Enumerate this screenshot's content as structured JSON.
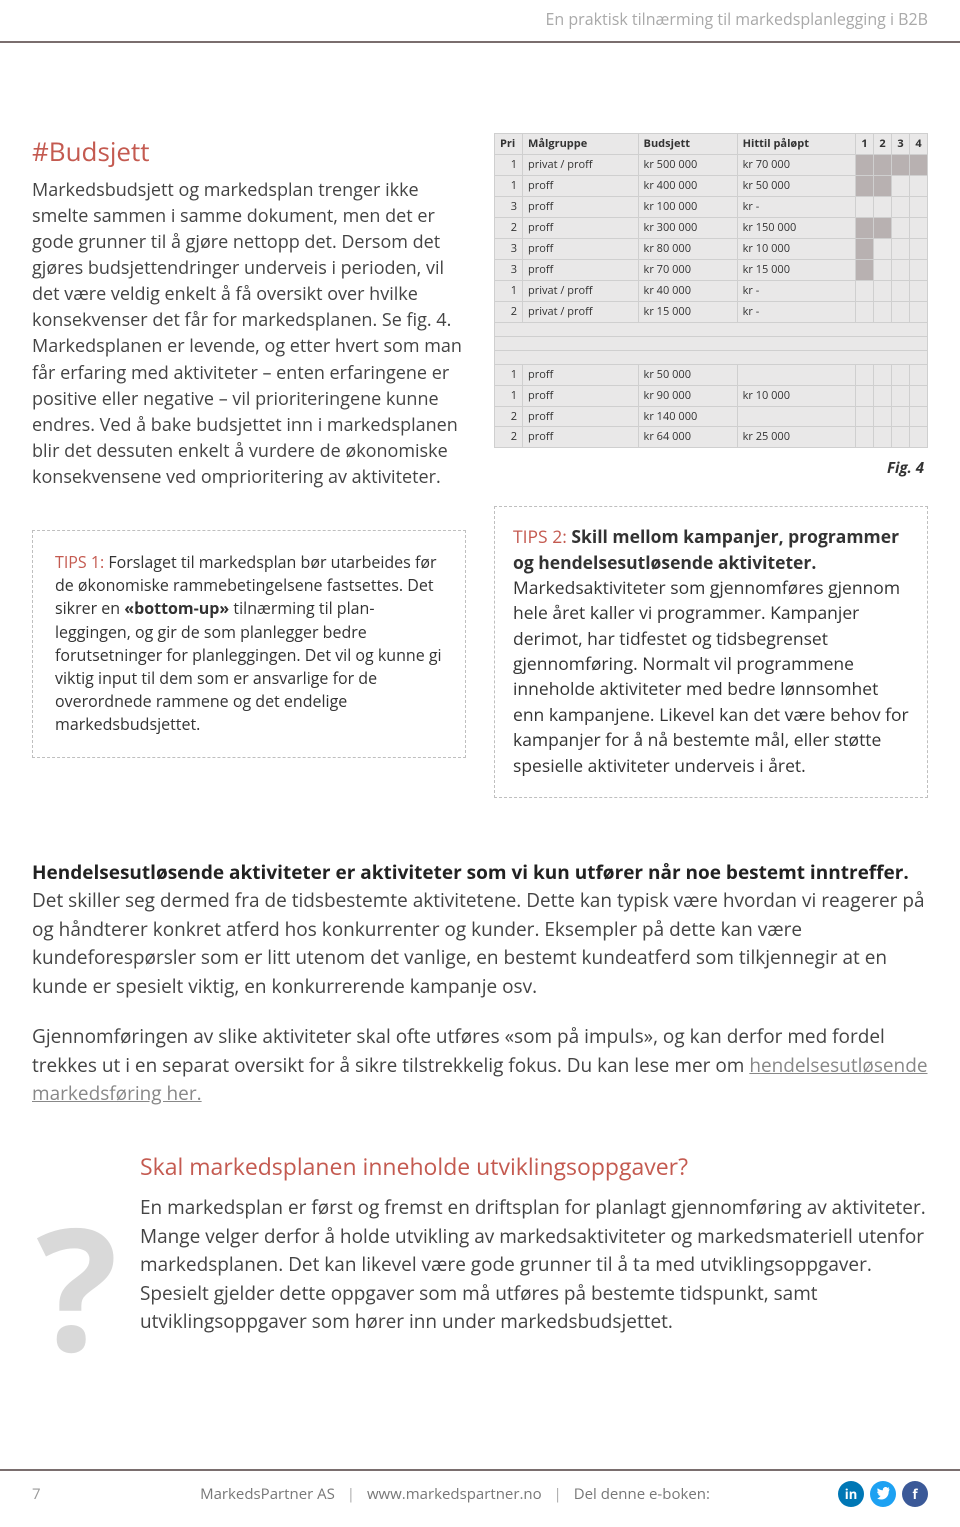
{
  "header": {
    "tagline": "En praktisk tilnærming til markedsplanlegging i B2B"
  },
  "section": {
    "heading": "#Budsjett",
    "para": "Markedsbudsjett og markedsplan trenger ikke smelte sammen i samme dokument, men det er gode grunner til å gjøre nettopp det. Dersom det gjøres budsjettendringer underveis i perioden, vil det være veldig enkelt å få oversikt over hvilke konsekvenser det får for markedsplanen. Se fig. 4. Markedsplanen er levende, og etter hvert som man får erfaring med aktiviteter – enten erfaringene er positive eller negative – vil prioriteringene kunne endres. Ved å bake budsjettet inn i markedsplanen blir det dessuten enkelt å vurdere de økonomiske konsekvensene ved omprioritering av aktiviteter."
  },
  "tip1": {
    "label": "TIPS 1:",
    "text_before": " Forslaget til markedsplan bør utarbeides før de økonomiske rammebetingelsene fastsettes. Det sikrer en ",
    "bold": "«bottom-up»",
    "text_after": " tilnærming til plan­leggingen, og gir de som planlegger bedre forutsetninger for planleggingen. Det vil og kunne gi viktig input til dem som er ansvarlige for de overordnede rammene og det endelige markedsbudsjettet."
  },
  "table": {
    "columns": [
      "Pri",
      "Målgruppe",
      "Budsjett",
      "Hittil påløpt",
      "1",
      "2",
      "3",
      "4"
    ],
    "rows1": [
      {
        "pri": "1",
        "mg": "privat / proff",
        "bud": "kr 500 000",
        "hit": "kr 70 000",
        "shade": [
          1,
          2,
          3,
          4
        ]
      },
      {
        "pri": "1",
        "mg": "proff",
        "bud": "kr 400 000",
        "hit": "kr 50 000",
        "shade": [
          1,
          2
        ]
      },
      {
        "pri": "3",
        "mg": "proff",
        "bud": "kr 100 000",
        "hit": "kr -",
        "shade": []
      },
      {
        "pri": "2",
        "mg": "proff",
        "bud": "kr 300 000",
        "hit": "kr 150 000",
        "shade": [
          1,
          2
        ]
      },
      {
        "pri": "3",
        "mg": "proff",
        "bud": "kr 80 000",
        "hit": "kr 10 000",
        "shade": [
          1
        ]
      },
      {
        "pri": "3",
        "mg": "proff",
        "bud": "kr 70 000",
        "hit": "kr 15 000",
        "shade": [
          1
        ]
      },
      {
        "pri": "1",
        "mg": "privat / proff",
        "bud": "kr 40 000",
        "hit": "kr -",
        "shade": []
      },
      {
        "pri": "2",
        "mg": "privat / proff",
        "bud": "kr 15 000",
        "hit": "kr -",
        "shade": []
      }
    ],
    "rows2": [
      {
        "pri": "1",
        "mg": "proff",
        "bud": "kr 50 000",
        "hit": "",
        "shade": []
      },
      {
        "pri": "1",
        "mg": "proff",
        "bud": "kr 90 000",
        "hit": "kr 10 000",
        "shade": []
      },
      {
        "pri": "2",
        "mg": "proff",
        "bud": "kr 140 000",
        "hit": "",
        "shade": []
      },
      {
        "pri": "2",
        "mg": "proff",
        "bud": "kr 64 000",
        "hit": "kr 25 000",
        "shade": []
      }
    ],
    "caption": "Fig. 4"
  },
  "tip2": {
    "label": "TIPS 2:",
    "bold_head": " Skill mellom kampanjer, programmer og hendelsesutløsende aktiviteter.",
    "text": " Markedsaktiviteter som gjennomføres gjennom hele året kaller vi programmer. Kampanjer derimot, har tidfestet og tidsbegrenset gjennomføring. Normalt vil programmene inneholde aktiviteter med bedre lønnsomhet enn kampanjene. Likevel kan det være behov for kampanjer for å nå bestemte mål, eller støtte spesielle aktiviteter underveis i året."
  },
  "full": {
    "bold": "Hendelsesutløsende aktiviteter er aktiviteter som vi kun utfører når noe bestemt inntreffer.",
    "p1": " Det skiller seg dermed fra de tidsbestemte aktivitetene. Dette kan typisk være hvordan vi reagerer på og håndterer konkret atferd hos konkurrenter og kunder. Eksempler på dette kan være kundeforespørsler som er litt utenom det vanlige, en bestemt kundeatferd som tilkjennegir at en kunde er spesielt viktig, en konkurrerende kampanje osv.",
    "p2a": "Gjennomføringen av slike aktiviteter skal ofte utføres «som på impuls», og kan derfor med fordel trekkes ut i en separat oversikt for å sikre tilstrekkelig fokus. Du kan lese mer om ",
    "link": "hendelsesutløsende markedsføring her.",
    "p2b": ""
  },
  "utvik": {
    "heading": "Skal markedsplanen inneholde utviklingsoppgaver?",
    "body": "En markedsplan er først og fremst en driftsplan for planlagt gjennomføring av aktiviteter. Mange velger derfor å holde utvikling av markedsaktiviteter og markeds­materiell utenfor markedsplanen. Det kan likevel være gode grunner til å ta med utviklingsoppgaver. Spesielt gjelder dette oppgaver som må utføres på bestemte tidspunkt, samt utviklingsoppgaver som hører inn under markedsbudsjettet."
  },
  "footer": {
    "page": "7",
    "company": "MarkedsPartner AS",
    "url": "www.markedspartner.no",
    "share": "Del denne e-boken:"
  }
}
